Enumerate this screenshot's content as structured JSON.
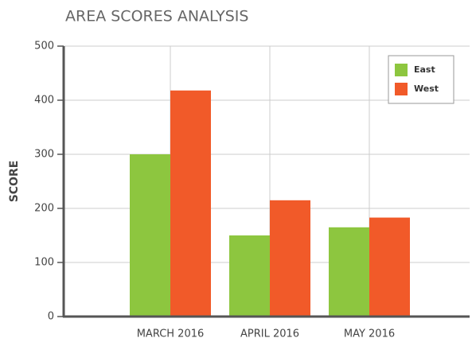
{
  "chart_data": {
    "type": "bar",
    "title": "AREA SCORES ANALYSIS",
    "y_label": "SCORE",
    "categories": [
      "MARCH 2016",
      "APRIL 2016",
      "MAY 2016"
    ],
    "series": [
      {
        "name": "East",
        "color": "#8dc63f",
        "values": [
          300,
          150,
          165
        ]
      },
      {
        "name": "West",
        "color": "#f15a29",
        "values": [
          418,
          215,
          183
        ]
      }
    ],
    "ylim": [
      0,
      500
    ],
    "yticks": [
      0,
      100,
      200,
      300,
      400,
      500
    ],
    "grid": true,
    "legend": "top-right"
  }
}
